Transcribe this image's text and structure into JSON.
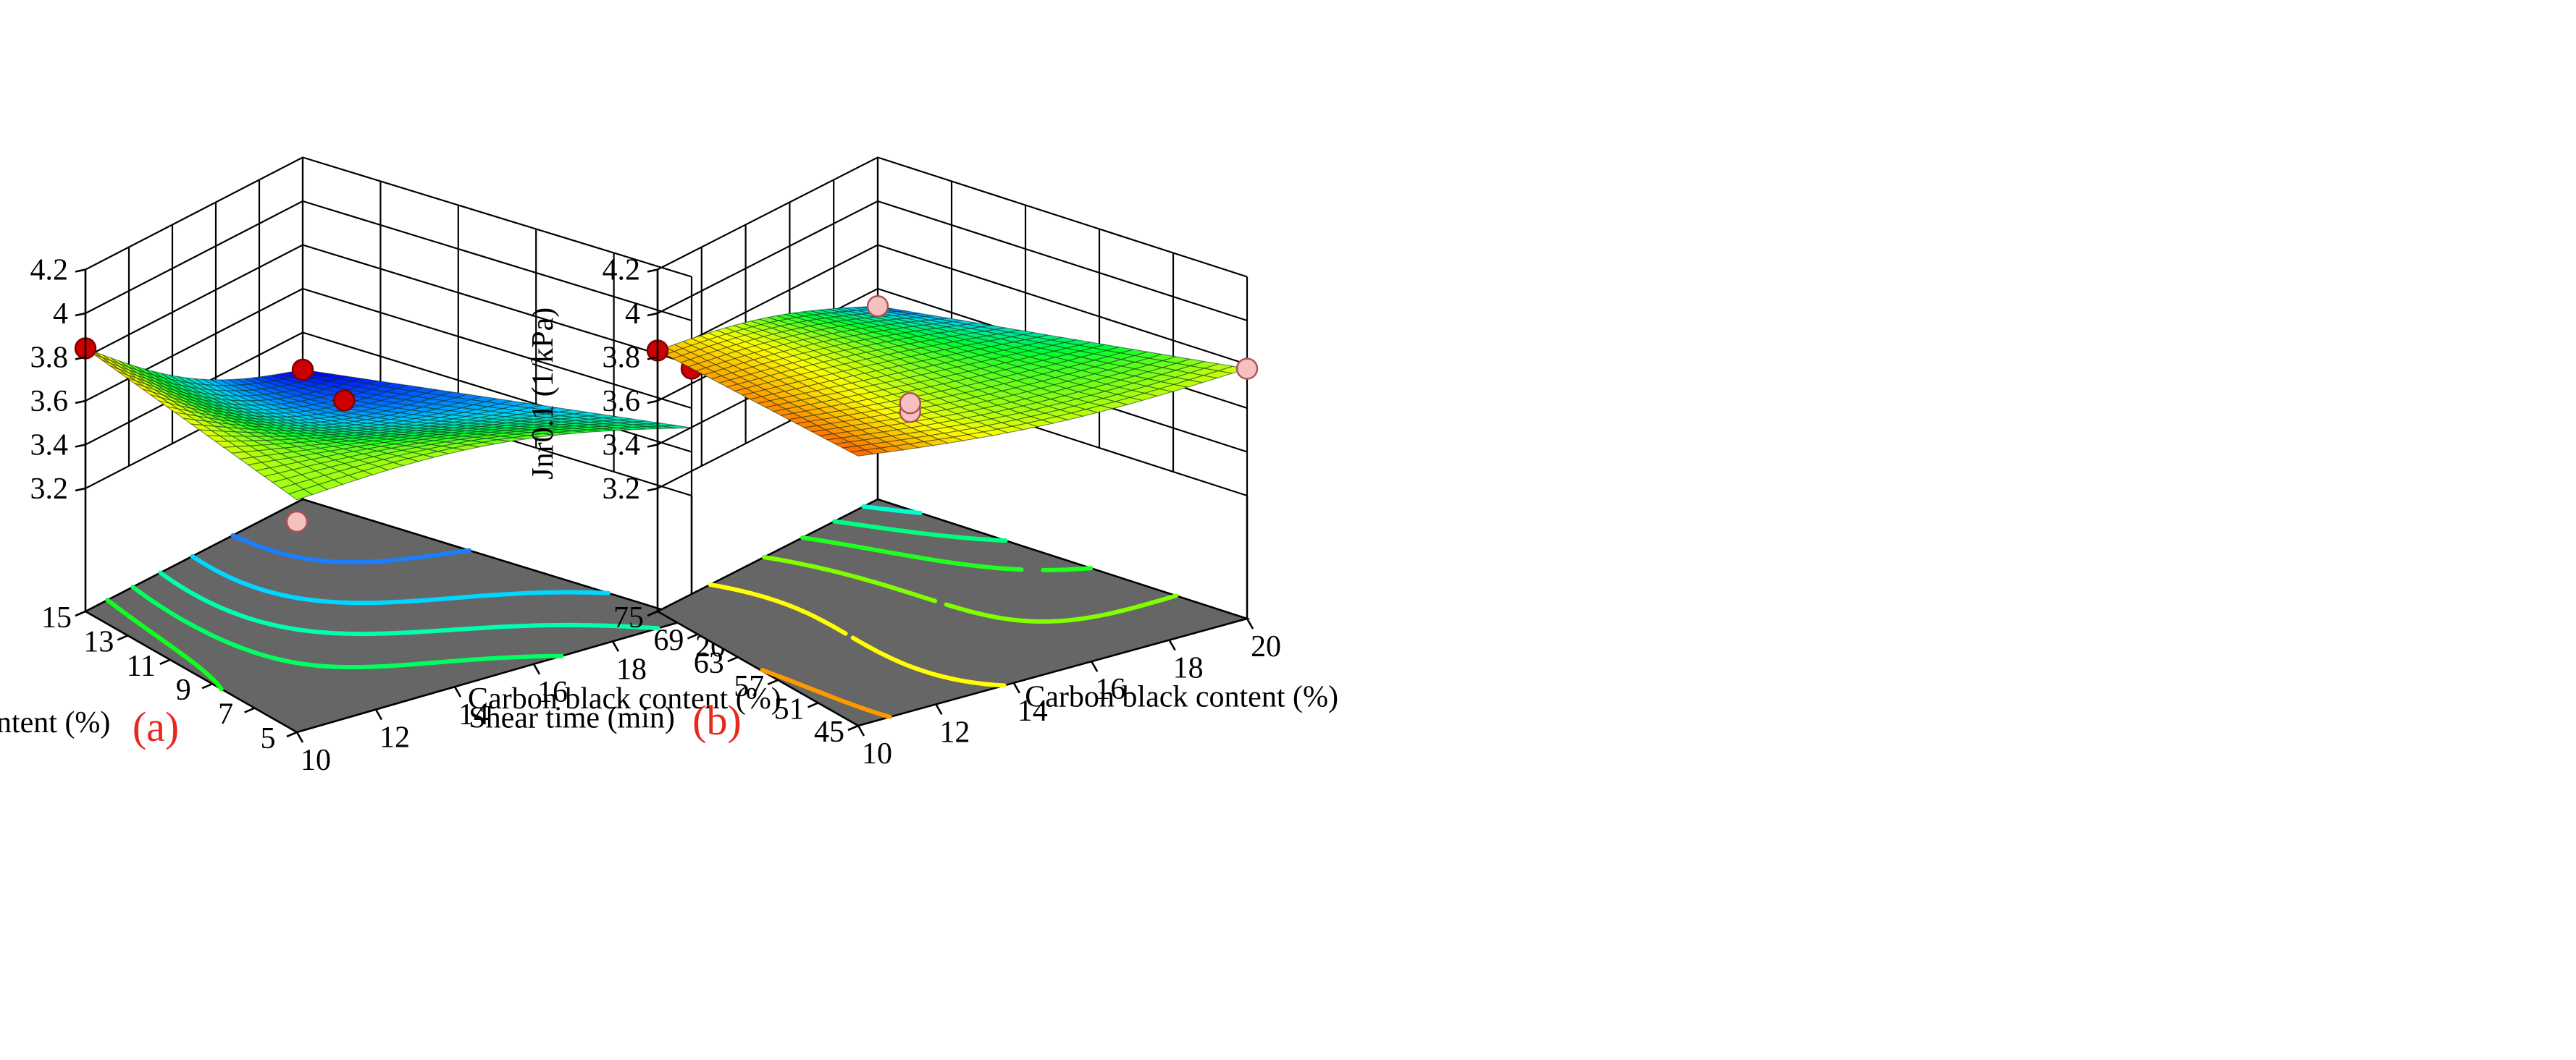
{
  "figure": {
    "panels": [
      "(a)",
      "(b)"
    ]
  },
  "colors": {
    "floor": "#666666",
    "panel_label": "#e8281e",
    "point_high": "#cc0000",
    "point_low": "#f4c0c0",
    "gradient_low": "#0000ff",
    "gradient_mid_low": "#00d0ff",
    "gradient_mid": "#00ff30",
    "gradient_mid_high": "#ffff00",
    "gradient_high": "#ff2000"
  },
  "chart_data": [
    {
      "type": "surface3d",
      "panel_label": "(a)",
      "zlabel": "Jnr0.1 (1/kPa)",
      "xlabel": "Carbon black content (%)",
      "ylabel": "Bio-oil content (%)",
      "x_ticks": [
        "10",
        "12",
        "14",
        "16",
        "18",
        "20"
      ],
      "y_ticks": [
        "5",
        "7",
        "9",
        "11",
        "13",
        "15"
      ],
      "z_ticks": [
        "3.2",
        "3.4",
        "3.6",
        "3.8",
        "4",
        "4.2"
      ],
      "xlim": [
        10,
        20
      ],
      "ylim": [
        5,
        15
      ],
      "zlim": [
        3.2,
        4.2
      ],
      "color_range": [
        3.25,
        3.95
      ],
      "surface": {
        "form": "z = z00*(1-u)*(1-v) + z10*u*(1-v) + z01*(1-u)*v + z11*u*v + k1*sin(pi*u)*cos(pi*v) + k2*sin(pi*u)*sin(pi*v); u=(x-10)/10, v=(y-5)/10",
        "z00": 3.7,
        "z10": 3.51,
        "z01": 3.84,
        "z11": 3.23,
        "k1": 0.09,
        "k2": -0.08
      },
      "design_points": [
        {
          "x": 10,
          "y": 15,
          "z": 3.84,
          "above": true
        },
        {
          "x": 20,
          "y": 15,
          "z": 3.23,
          "above": true
        },
        {
          "x": 15,
          "y": 10,
          "z": 3.62,
          "above": true
        },
        {
          "x": 20,
          "y": 5,
          "z": 3.78,
          "above": true
        },
        {
          "x": 10,
          "y": 5,
          "z": 3.6,
          "above": false
        }
      ],
      "contours": [
        {
          "z": 3.35,
          "color": "#1a7fff"
        },
        {
          "z": 3.45,
          "color": "#00d6ff"
        },
        {
          "z": 3.55,
          "color": "#00ffb0"
        },
        {
          "z": 3.65,
          "color": "#00ff60"
        },
        {
          "z": 3.75,
          "color": "#10ff20"
        },
        {
          "z": 3.85,
          "color": "#80ff00"
        }
      ]
    },
    {
      "type": "surface3d",
      "panel_label": "(b)",
      "zlabel": "Jnr0.1 (1/kPa)",
      "xlabel": "Carbon black content (%)",
      "ylabel": "Shear time (min)",
      "x_ticks": [
        "10",
        "12",
        "14",
        "16",
        "18",
        "20"
      ],
      "y_ticks": [
        "45",
        "51",
        "57",
        "63",
        "69",
        "75"
      ],
      "z_ticks": [
        "3.2",
        "3.4",
        "3.6",
        "3.8",
        "4",
        "4.2"
      ],
      "xlim": [
        10,
        20
      ],
      "ylim": [
        45,
        75
      ],
      "zlim": [
        3.2,
        4.2
      ],
      "color_range": [
        3.48,
        3.9
      ],
      "surface": {
        "form": "z = z00*(1-u)*(1-v) + z10*u*(1-v) + z01*(1-u)*v + z11*u*v + k1*sin(pi*u)*cos(pi*v) + k2*sin(pi*u)*sin(pi*v); u=(x-10)/10, v=(y-45)/30",
        "z00": 3.87,
        "z10": 3.78,
        "z01": 3.83,
        "z11": 3.52,
        "k1": -0.05,
        "k2": 0.0
      },
      "design_points": [
        {
          "x": 10,
          "y": 75,
          "z": 3.83,
          "above": true
        },
        {
          "x": 20,
          "y": 75,
          "z": 3.52,
          "above": false
        },
        {
          "x": 20,
          "y": 45,
          "z": 3.78,
          "above": false
        },
        {
          "x": 15,
          "y": 60,
          "z": 3.56,
          "above": false
        },
        {
          "x": 15,
          "y": 60,
          "z": 3.6,
          "above": false
        }
      ],
      "contours": [
        {
          "z": 3.55,
          "color": "#00ffd0"
        },
        {
          "z": 3.61,
          "color": "#00ff80"
        },
        {
          "z": 3.67,
          "color": "#20ff20"
        },
        {
          "z": 3.73,
          "color": "#80ff00"
        },
        {
          "z": 3.79,
          "color": "#ffff00"
        },
        {
          "z": 3.85,
          "color": "#ff9900"
        }
      ]
    }
  ]
}
